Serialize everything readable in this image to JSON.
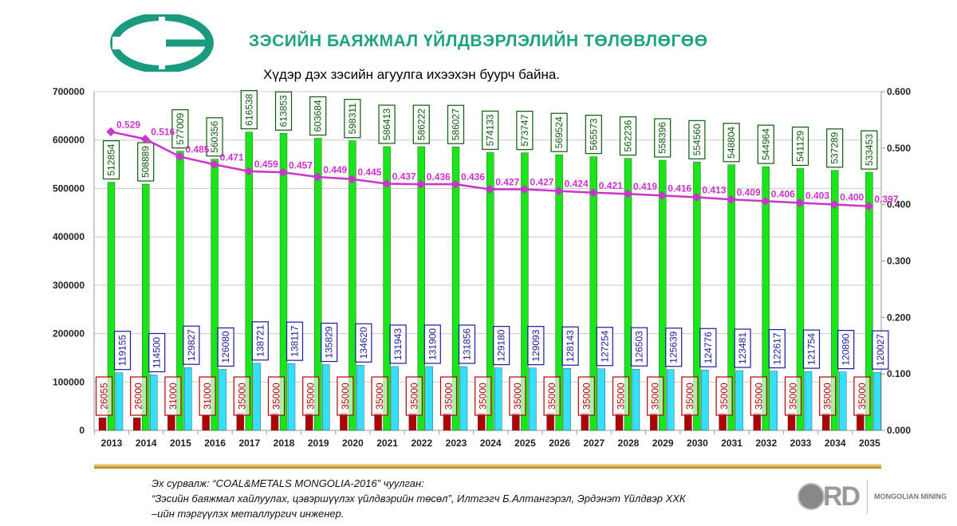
{
  "header": {
    "title": "ЗЭСИЙН БАЯЖМАЛ ҮЙЛДВЭРЛЭЛИЙН ТӨЛӨВЛӨГӨӨ",
    "logo_text": "CE"
  },
  "chart_data": {
    "type": "bar",
    "title": "Хүдэр дэх зэсийн агуулга ихээхэн буурч байна.",
    "categories": [
      "2013",
      "2014",
      "2015",
      "2016",
      "2017",
      "2018",
      "2019",
      "2020",
      "2021",
      "2022",
      "2023",
      "2024",
      "2025",
      "2026",
      "2027",
      "2028",
      "2029",
      "2030",
      "2031",
      "2032",
      "2033",
      "2034",
      "2035"
    ],
    "ylim": [
      0,
      700000
    ],
    "y2lim": [
      0,
      0.6
    ],
    "yticks": [
      "0",
      "100000",
      "200000",
      "300000",
      "400000",
      "500000",
      "600000",
      "700000"
    ],
    "y2ticks": [
      "0.000",
      "0.100",
      "0.200",
      "0.300",
      "0.400",
      "0.500",
      "0.600"
    ],
    "grid": true,
    "series": [
      {
        "name": "red",
        "axis": "left",
        "type": "bar",
        "color": "#b00000",
        "values": [
          26055,
          26000,
          31000,
          31000,
          35000,
          35000,
          35000,
          35000,
          35000,
          35000,
          35000,
          35000,
          35000,
          35000,
          35000,
          35000,
          35000,
          35000,
          35000,
          35000,
          35000,
          35000,
          35000
        ]
      },
      {
        "name": "green",
        "axis": "left",
        "type": "bar",
        "color": "#19e619",
        "values": [
          512854,
          508889,
          577009,
          560356,
          616538,
          613853,
          603684,
          598311,
          586413,
          586222,
          586027,
          574133,
          573747,
          569524,
          565573,
          562236,
          558396,
          554560,
          548804,
          544964,
          541129,
          537289,
          533453
        ]
      },
      {
        "name": "cyan",
        "axis": "left",
        "type": "bar",
        "color": "#33e0ff",
        "values": [
          119155,
          114500,
          129827,
          126080,
          138721,
          138117,
          135829,
          134620,
          131943,
          131900,
          131856,
          129180,
          129093,
          128143,
          127254,
          126503,
          125639,
          124776,
          123481,
          122617,
          121754,
          120890,
          120027
        ]
      },
      {
        "name": "grade",
        "axis": "right",
        "type": "line",
        "color": "#cc33cc",
        "values": [
          0.529,
          0.516,
          0.485,
          0.471,
          0.459,
          0.457,
          0.449,
          0.445,
          0.437,
          0.436,
          0.436,
          0.427,
          0.427,
          0.424,
          0.421,
          0.419,
          0.416,
          0.413,
          0.409,
          0.406,
          0.403,
          0.4,
          0.397
        ]
      }
    ]
  },
  "footer": {
    "source_lines": [
      "Эх сурвалж: “COAL&METALS MONGOLIA-2016” чуулган:",
      "“Зэсийн баяжмал хайлуулах, цэвэршүүлэх үйлдвэрийн төсөл”, Илтгэгч Б.Алтангэрэл, Эрдэнэт Үйлдвэр ХХК",
      "–ийн тэргүүлэх металлургич инженер."
    ],
    "brand_rd": "RD",
    "brand_name": "MONGOLIAN MINING"
  }
}
